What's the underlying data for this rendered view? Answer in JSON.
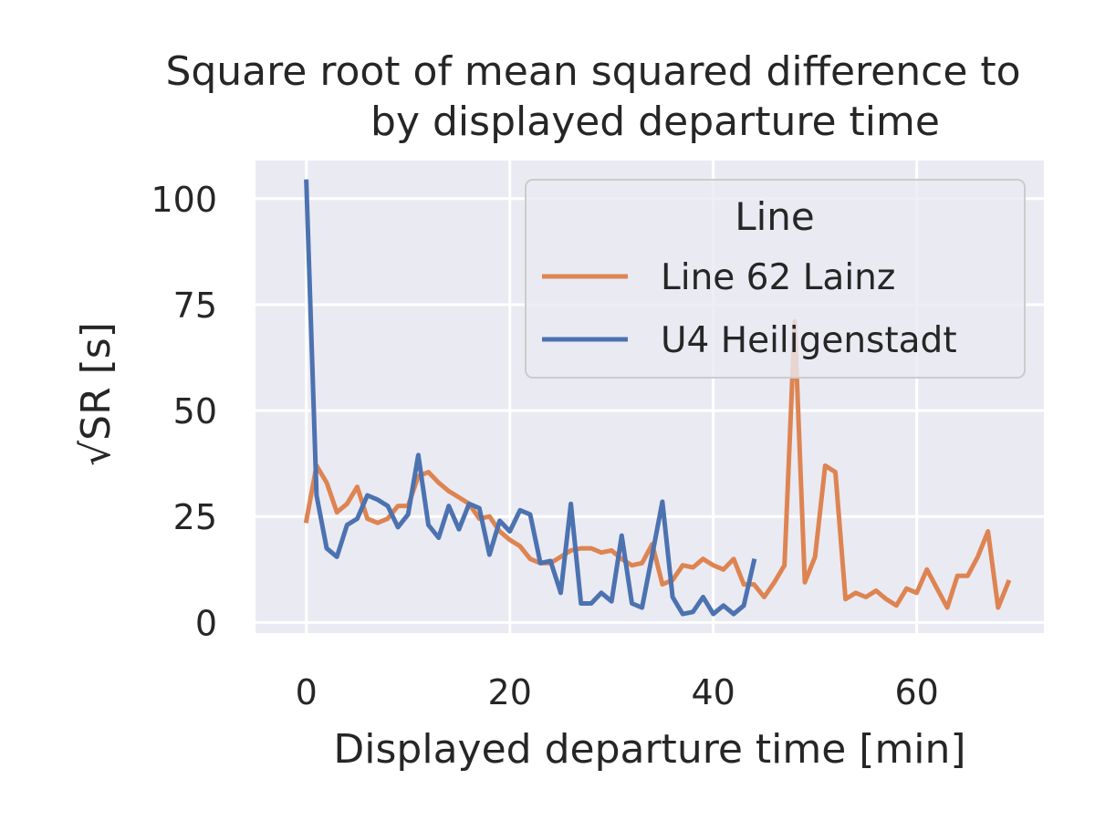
{
  "chart_data": {
    "type": "line",
    "title": [
      "Square root of mean squared difference to",
      "by displayed departure time"
    ],
    "xlabel": "Displayed departure time [min]",
    "ylabel": "√SR [s]",
    "xlim": [
      -5,
      72.5
    ],
    "ylim": [
      -2.5,
      109
    ],
    "xticks": [
      0,
      20,
      40,
      60
    ],
    "yticks": [
      0,
      25,
      50,
      75,
      100
    ],
    "grid": true,
    "legend": {
      "title": "Line",
      "placement": "upper right"
    },
    "series": [
      {
        "name": "Line 62 Lainz",
        "color": "#dd8452",
        "x": [
          0,
          1,
          2,
          3,
          4,
          5,
          6,
          7,
          8,
          9,
          10,
          11,
          12,
          13,
          14,
          15,
          16,
          17,
          18,
          19,
          20,
          21,
          22,
          23,
          24,
          25,
          26,
          27,
          28,
          29,
          30,
          31,
          32,
          33,
          34,
          35,
          36,
          37,
          38,
          39,
          40,
          41,
          42,
          43,
          44,
          45,
          46,
          47,
          48,
          49,
          50,
          51,
          52,
          53,
          54,
          55,
          56,
          57,
          58,
          59,
          60,
          61,
          62,
          63,
          64,
          65,
          66,
          67,
          68,
          69
        ],
        "y": [
          24,
          37,
          33,
          26,
          28,
          32,
          24.5,
          23.5,
          24.5,
          27.5,
          27.5,
          34.5,
          35.5,
          33,
          31,
          29.5,
          28,
          24.5,
          25,
          21.5,
          19.5,
          18,
          15,
          14,
          14,
          15.5,
          17,
          17.5,
          17.5,
          16.5,
          17,
          15,
          13.5,
          14,
          18.5,
          9,
          10,
          13.5,
          13,
          15,
          13.5,
          12.5,
          15,
          9,
          9,
          6,
          9.5,
          13.5,
          71,
          9.5,
          15.5,
          37,
          35.5,
          5.5,
          7,
          6,
          7.5,
          5.5,
          4,
          8,
          7,
          12.5,
          8,
          3.5,
          11,
          11,
          15.5,
          21.5,
          3.5,
          9.5
        ]
      },
      {
        "name": "U4 Heiligenstadt",
        "color": "#4c72b0",
        "x": [
          0,
          1,
          2,
          3,
          4,
          5,
          6,
          7,
          8,
          9,
          10,
          11,
          12,
          13,
          14,
          15,
          16,
          17,
          18,
          19,
          20,
          21,
          22,
          23,
          24,
          25,
          26,
          27,
          28,
          29,
          30,
          31,
          32,
          33,
          34,
          35,
          36,
          37,
          38,
          39,
          40,
          41,
          42,
          43,
          44
        ],
        "y": [
          104,
          30,
          17.5,
          15.5,
          23,
          24.5,
          30,
          29,
          27.5,
          22.5,
          25.5,
          39.5,
          23,
          20,
          27.5,
          22,
          28,
          27,
          16,
          24,
          21.5,
          26.5,
          25.5,
          14,
          14.5,
          7,
          28,
          4.5,
          4.5,
          7,
          5,
          20.5,
          4.5,
          3.5,
          16,
          28.5,
          6,
          2,
          2.5,
          6,
          2,
          4,
          2,
          4,
          14.5
        ]
      }
    ]
  }
}
